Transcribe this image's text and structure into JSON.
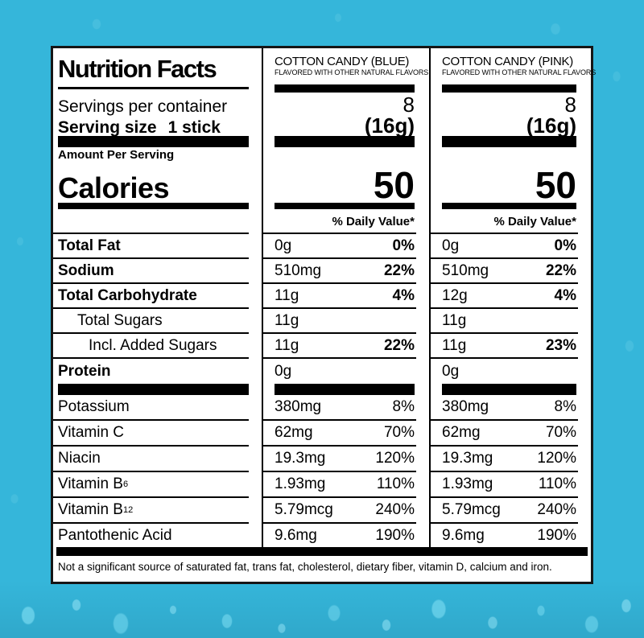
{
  "colors": {
    "background": "#35b6da",
    "label_background": "#ffffff",
    "ink": "#000000"
  },
  "label": {
    "title": "Nutrition Facts",
    "servings_per_container_label": "Servings per container",
    "serving_size_label": "Serving size",
    "serving_size_value": "1 stick",
    "amount_per_serving_label": "Amount Per Serving",
    "calories_label": "Calories",
    "daily_value_header": "% Daily Value*",
    "footnote": "Not a significant source of saturated fat, trans fat, cholesterol, dietary fiber, vitamin D, calcium and iron.",
    "columns": [
      {
        "name": "COTTON CANDY (BLUE)",
        "subtitle": "FLAVORED WITH OTHER NATURAL FLAVORS",
        "servings_per_container": "8",
        "serving_size": "(16g)",
        "calories": "50"
      },
      {
        "name": "COTTON CANDY (PINK)",
        "subtitle": "FLAVORED WITH OTHER NATURAL FLAVORS",
        "servings_per_container": "8",
        "serving_size": "(16g)",
        "calories": "50"
      }
    ],
    "nutrients": [
      {
        "label": "Total Fat",
        "col1": {
          "amount": "0g",
          "dv": "0%"
        },
        "col2": {
          "amount": "0g",
          "dv": "0%"
        }
      },
      {
        "label": "Sodium",
        "col1": {
          "amount": "510mg",
          "dv": "22%"
        },
        "col2": {
          "amount": "510mg",
          "dv": "22%"
        }
      },
      {
        "label": "Total Carbohydrate",
        "col1": {
          "amount": "11g",
          "dv": "4%"
        },
        "col2": {
          "amount": "12g",
          "dv": "4%"
        }
      },
      {
        "label": "Total Sugars",
        "col1": {
          "amount": "11g",
          "dv": ""
        },
        "col2": {
          "amount": "11g",
          "dv": ""
        }
      },
      {
        "label": "Incl. Added Sugars",
        "col1": {
          "amount": "11g",
          "dv": "22%"
        },
        "col2": {
          "amount": "11g",
          "dv": "23%"
        }
      },
      {
        "label": "Protein",
        "col1": {
          "amount": "0g",
          "dv": ""
        },
        "col2": {
          "amount": "0g",
          "dv": ""
        }
      }
    ],
    "vitamins": [
      {
        "label": "Potassium",
        "sub": "",
        "col1": {
          "amount": "380mg",
          "dv": "8%"
        },
        "col2": {
          "amount": "380mg",
          "dv": "8%"
        }
      },
      {
        "label": "Vitamin C",
        "sub": "",
        "col1": {
          "amount": "62mg",
          "dv": "70%"
        },
        "col2": {
          "amount": "62mg",
          "dv": "70%"
        }
      },
      {
        "label": "Niacin",
        "sub": "",
        "col1": {
          "amount": "19.3mg",
          "dv": "120%"
        },
        "col2": {
          "amount": "19.3mg",
          "dv": "120%"
        }
      },
      {
        "label": "Vitamin B",
        "sub": "6",
        "col1": {
          "amount": "1.93mg",
          "dv": "110%"
        },
        "col2": {
          "amount": "1.93mg",
          "dv": "110%"
        }
      },
      {
        "label": "Vitamin B",
        "sub": "12",
        "col1": {
          "amount": "5.79mcg",
          "dv": "240%"
        },
        "col2": {
          "amount": "5.79mcg",
          "dv": "240%"
        }
      },
      {
        "label": "Pantothenic Acid",
        "sub": "",
        "col1": {
          "amount": "9.6mg",
          "dv": "190%"
        },
        "col2": {
          "amount": "9.6mg",
          "dv": "190%"
        }
      }
    ]
  }
}
